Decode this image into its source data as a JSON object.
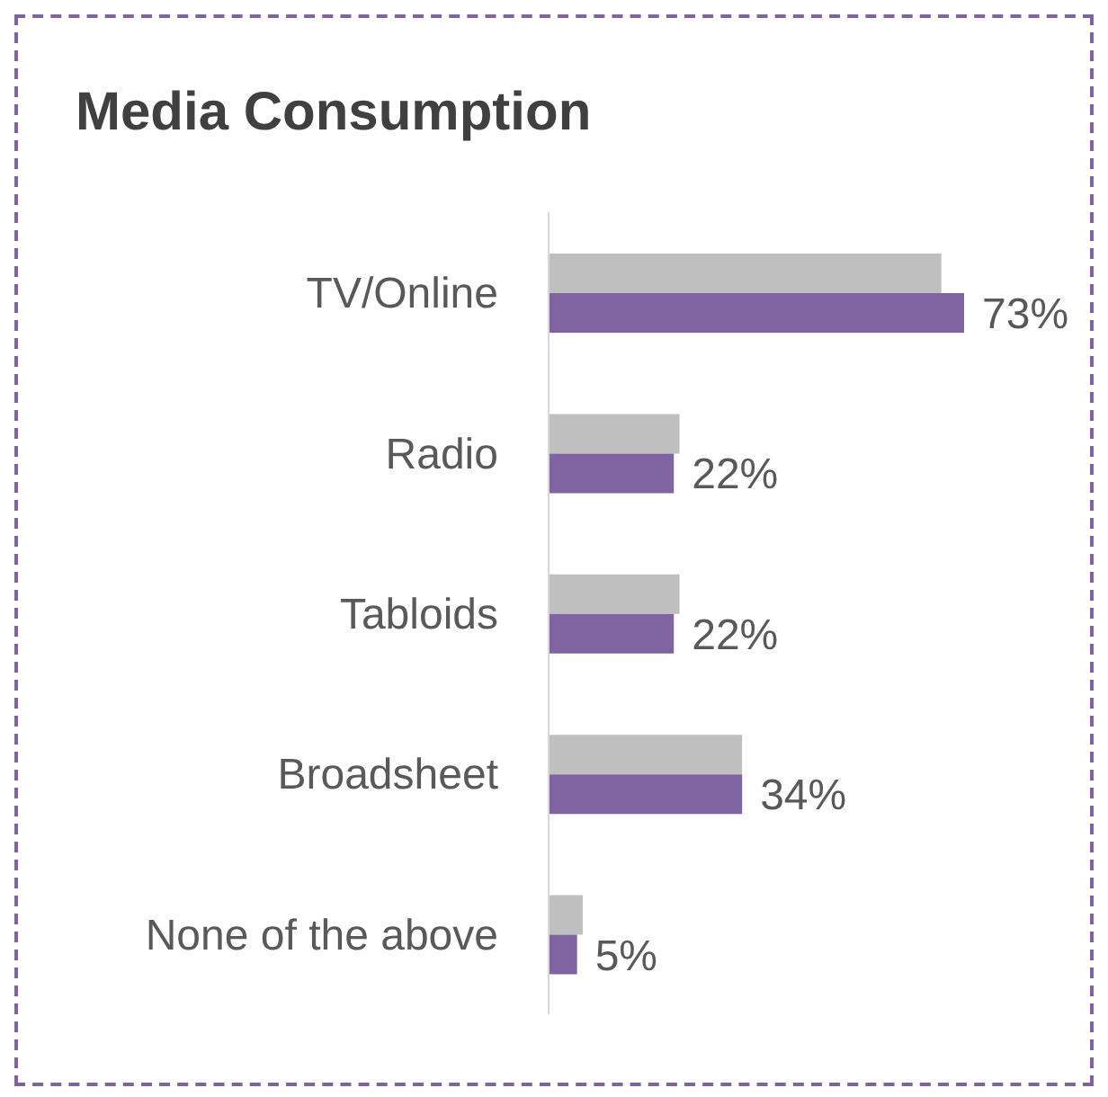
{
  "chart_data": {
    "type": "bar",
    "orientation": "horizontal",
    "title": "Media Consumption",
    "categories": [
      "TV/Online",
      "Radio",
      "Tabloids",
      "Broadsheet",
      "None of the above"
    ],
    "series": [
      {
        "color": "#bfbfbf",
        "values": [
          69,
          23,
          23,
          34,
          6
        ]
      },
      {
        "color": "#8064a2",
        "values": [
          73,
          22,
          22,
          34,
          5
        ],
        "value_labels": [
          "73%",
          "22%",
          "22%",
          "34%",
          "5%"
        ]
      }
    ]
  }
}
